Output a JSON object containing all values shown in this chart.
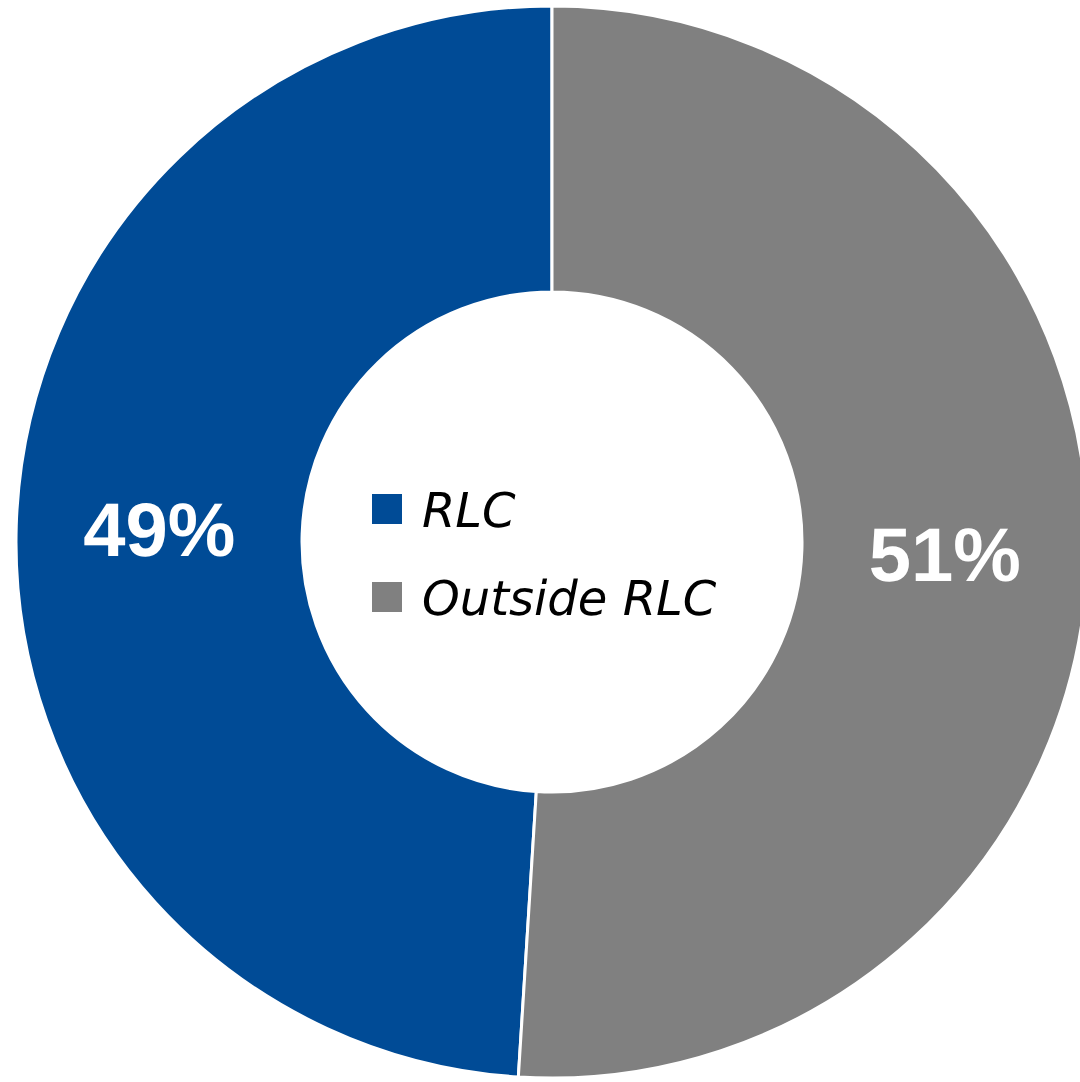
{
  "chart_data": {
    "type": "donut",
    "categories": [
      "RLC",
      "Outside RLC"
    ],
    "values": [
      49,
      51
    ],
    "colors": [
      "#004b96",
      "#808080"
    ],
    "value_labels": [
      "49%",
      "51%"
    ],
    "legend": "center"
  }
}
